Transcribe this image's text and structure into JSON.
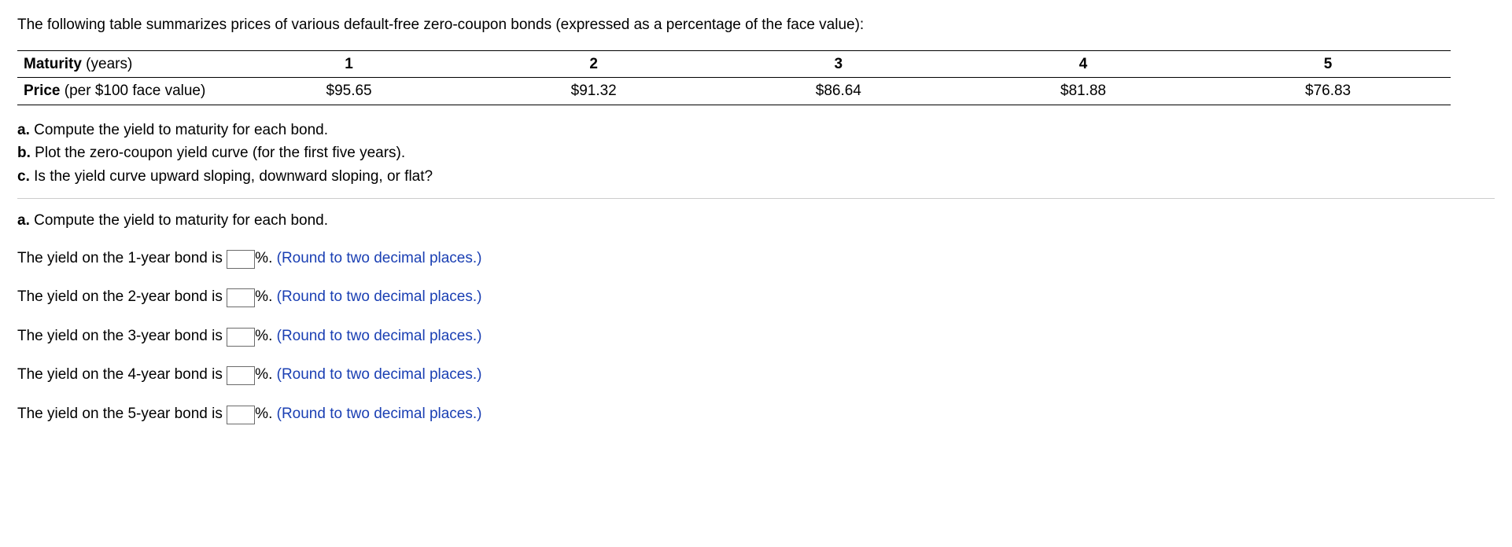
{
  "intro": "The following table summarizes prices of various default-free zero-coupon bonds (expressed as a percentage of the face value):",
  "table": {
    "row1_label_bold": "Maturity",
    "row1_label_rest": " (years)",
    "row2_label_bold": "Price",
    "row2_label_rest": " (per $100 face value)",
    "maturities": [
      "1",
      "2",
      "3",
      "4",
      "5"
    ],
    "prices": [
      "$95.65",
      "$91.32",
      "$86.64",
      "$81.88",
      "$76.83"
    ]
  },
  "questions": {
    "a_bold": "a.",
    "a_text": " Compute the yield to maturity for each bond.",
    "b_bold": "b.",
    "b_text": " Plot the zero-coupon yield curve (for the first five years).",
    "c_bold": "c.",
    "c_text": " Is the yield curve upward sloping, downward sloping, or flat?"
  },
  "section_a": {
    "lead_bold": "a.",
    "lead_text": " Compute the yield to maturity for each bond.",
    "rows": [
      {
        "pre": "The yield on the 1-year bond is ",
        "post": "%. ",
        "hint": " (Round to two decimal places.)"
      },
      {
        "pre": "The yield on the 2-year bond is ",
        "post": "%. ",
        "hint": " (Round to two decimal places.)"
      },
      {
        "pre": "The yield on the 3-year bond is ",
        "post": "%. ",
        "hint": " (Round to two decimal places.)"
      },
      {
        "pre": "The yield on the 4-year bond is ",
        "post": "%. ",
        "hint": " (Round to two decimal places.)"
      },
      {
        "pre": "The yield on the 5-year bond is ",
        "post": "%. ",
        "hint": " (Round to two decimal places.)"
      }
    ]
  }
}
